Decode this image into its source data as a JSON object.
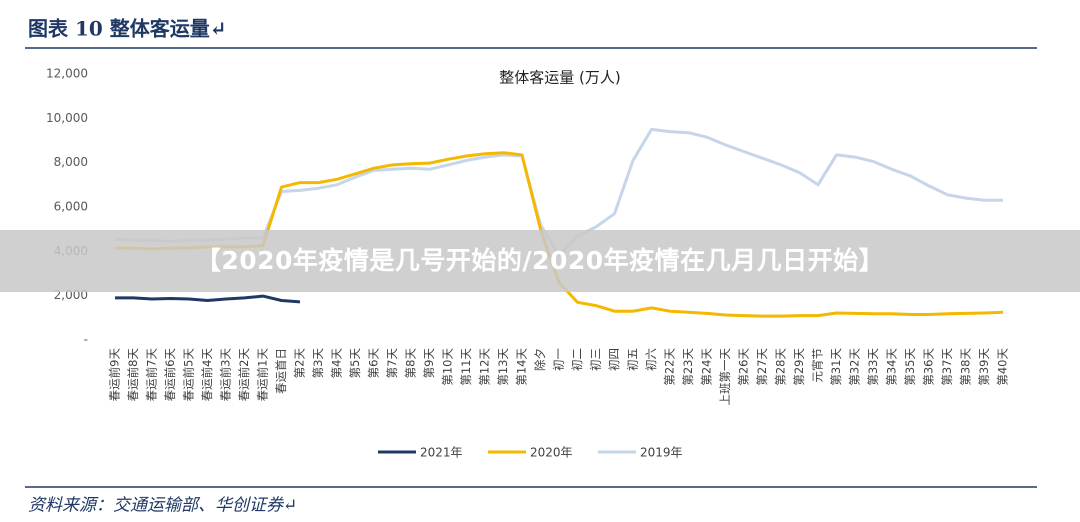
{
  "header": {
    "title": "图表 10  整体客运量↵"
  },
  "source": "资料来源：交通运输部、华创证券↵",
  "banner": "【2020年疫情是几号开始的/2020年疫情在几月几日开始】",
  "chart_data": {
    "type": "line",
    "title": "整体客运量  (万人)",
    "categories": [
      "春运前9天",
      "春运前8天",
      "春运前7天",
      "春运前6天",
      "春运前5天",
      "春运前4天",
      "春运前3天",
      "春运前2天",
      "春运前1天",
      "春运首日",
      "第2天",
      "第3天",
      "第4天",
      "第5天",
      "第6天",
      "第7天",
      "第8天",
      "第9天",
      "第10天",
      "第11天",
      "第12天",
      "第13天",
      "第14天",
      "除夕",
      "初一",
      "初二",
      "初三",
      "初四",
      "初五",
      "初六",
      "第22天",
      "第23天",
      "第24天",
      "上班第一天",
      "第26天",
      "第27天",
      "第28天",
      "第29天",
      "元宵节",
      "第31天",
      "第32天",
      "第33天",
      "第34天",
      "第35天",
      "第36天",
      "第37天",
      "第38天",
      "第39天",
      "第40天"
    ],
    "series": [
      {
        "name": "2021年",
        "color": "#1f3864",
        "values": [
          1900,
          1900,
          1850,
          1870,
          1850,
          1780,
          1850,
          1900,
          1980,
          1780,
          1720,
          null,
          null,
          null,
          null,
          null,
          null,
          null,
          null,
          null,
          null,
          null,
          null,
          null,
          null,
          null,
          null,
          null,
          null,
          null,
          null,
          null,
          null,
          null,
          null,
          null,
          null,
          null,
          null,
          null,
          null,
          null,
          null,
          null,
          null,
          null,
          null,
          null,
          null
        ]
      },
      {
        "name": "2020年",
        "color": "#f5b800",
        "values": [
          4150,
          4150,
          4100,
          4150,
          4150,
          4200,
          4200,
          4200,
          4250,
          6900,
          7100,
          7100,
          7250,
          7500,
          7750,
          7900,
          7950,
          7980,
          8150,
          8300,
          8400,
          8450,
          8350,
          5000,
          2600,
          1700,
          1550,
          1300,
          1300,
          1450,
          1300,
          1250,
          1200,
          1130,
          1100,
          1080,
          1080,
          1100,
          1100,
          1220,
          1200,
          1180,
          1180,
          1150,
          1150,
          1180,
          1200,
          1220,
          1250
        ]
      },
      {
        "name": "2019年",
        "color": "#c5d5ea",
        "values": [
          4550,
          4500,
          4500,
          4450,
          4500,
          4500,
          4550,
          4600,
          4600,
          6700,
          6750,
          6850,
          7000,
          7350,
          7650,
          7700,
          7750,
          7700,
          7900,
          8100,
          8250,
          8350,
          8300,
          5200,
          3800,
          4700,
          5100,
          5700,
          8100,
          9500,
          9400,
          9350,
          9150,
          8800,
          8500,
          8200,
          7900,
          7550,
          7000,
          8350,
          8250,
          8050,
          7700,
          7400,
          6950,
          6550,
          6400,
          6300,
          6300
        ]
      }
    ],
    "ylim": [
      0,
      12000
    ],
    "yticks": [
      {
        "value": 0,
        "label": "-"
      },
      {
        "value": 2000,
        "label": "2,000"
      },
      {
        "value": 4000,
        "label": "4,000"
      },
      {
        "value": 6000,
        "label": "6,000"
      },
      {
        "value": 8000,
        "label": "8,000"
      },
      {
        "value": 10000,
        "label": "10,000"
      },
      {
        "value": 12000,
        "label": "12,000"
      }
    ],
    "legend": "bottom"
  }
}
